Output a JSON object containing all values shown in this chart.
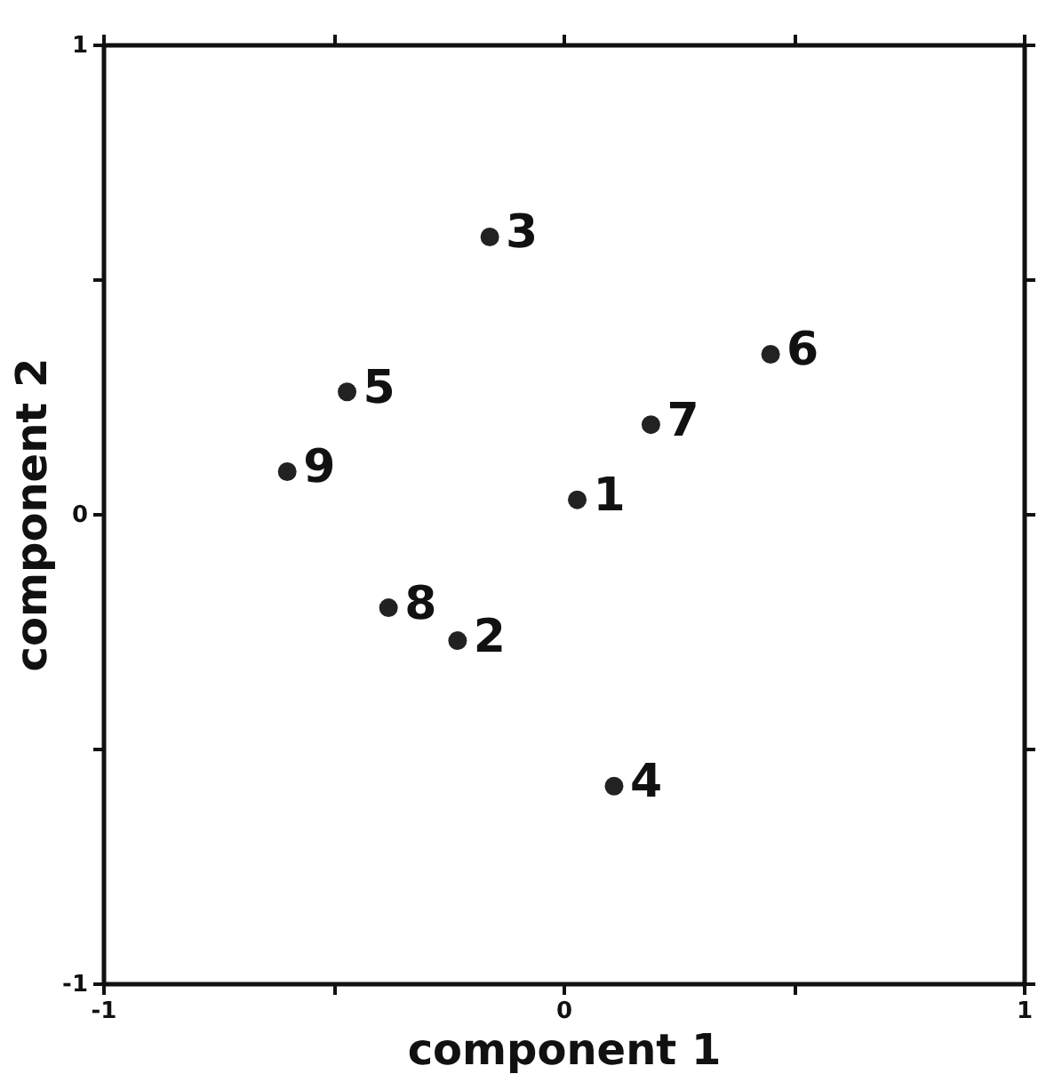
{
  "chart_data": {
    "type": "scatter",
    "xlabel": "component 1",
    "ylabel": "component 2",
    "x": [
      0.03,
      -0.23,
      -0.16,
      0.11,
      -0.47,
      0.45,
      0.19,
      -0.38,
      -0.6
    ],
    "values": [
      0.03,
      -0.27,
      0.59,
      -0.58,
      0.26,
      0.34,
      0.19,
      -0.2,
      0.09
    ],
    "color": "#222222",
    "marker": "circle",
    "grid": false,
    "xlim": [
      -1,
      1
    ],
    "ylim": [
      -1,
      1
    ],
    "xticks": [
      -1,
      {
        "value": -0.5,
        "label": null
      },
      0,
      {
        "value": 0.5,
        "label": null
      },
      1
    ],
    "yticks": [
      -1,
      {
        "value": -0.5,
        "label": null
      },
      0,
      {
        "value": 0.5,
        "label": null
      },
      1
    ],
    "annotations": [
      {
        "text": "1",
        "x": 0.03,
        "y": 0.03
      },
      {
        "text": "2",
        "x": -0.23,
        "y": -0.27
      },
      {
        "text": "3",
        "x": -0.16,
        "y": 0.59
      },
      {
        "text": "4",
        "x": 0.11,
        "y": -0.58
      },
      {
        "text": "5",
        "x": -0.47,
        "y": 0.26
      },
      {
        "text": "6",
        "x": 0.45,
        "y": 0.34
      },
      {
        "text": "7",
        "x": 0.19,
        "y": 0.19
      },
      {
        "text": "8",
        "x": -0.38,
        "y": -0.2
      },
      {
        "text": "9",
        "x": -0.6,
        "y": 0.09
      }
    ]
  }
}
